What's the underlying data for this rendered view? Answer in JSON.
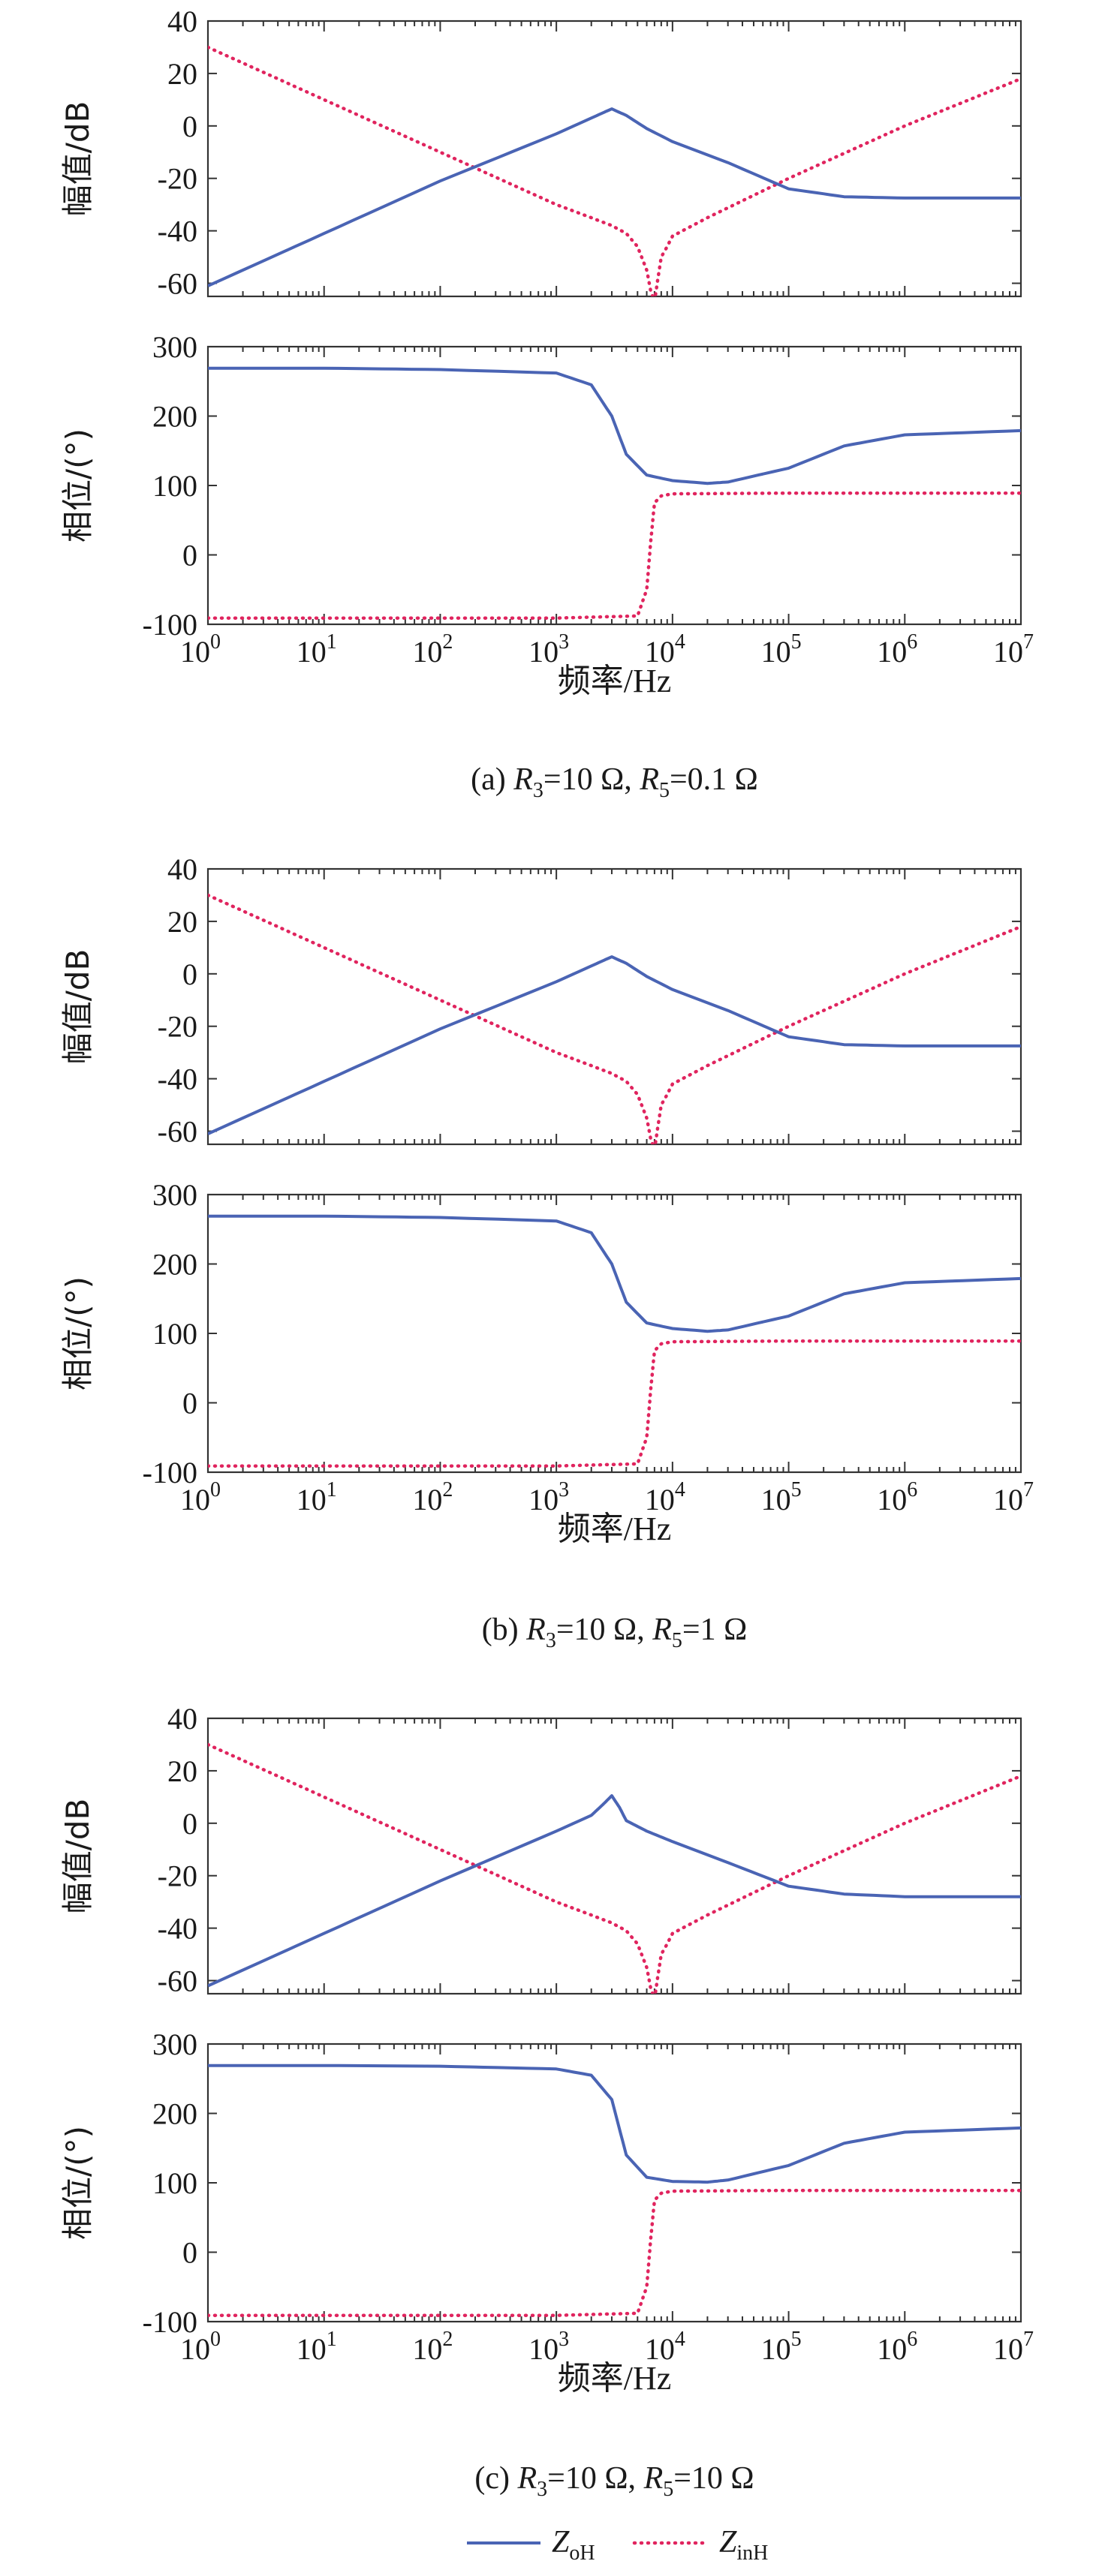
{
  "legend": [
    {
      "name": "Z",
      "sub": "oH",
      "color": "#4a64b4",
      "style": "solid"
    },
    {
      "name": "Z",
      "sub": "inH",
      "color": "#e0245e",
      "style": "dotted"
    }
  ],
  "x_axis": {
    "label": "频率/Hz",
    "scale": "log",
    "range": [
      1,
      10000000
    ],
    "tick_exponents": [
      0,
      1,
      2,
      3,
      4,
      5,
      6,
      7
    ]
  },
  "mag_axis": {
    "label": "幅值/dB",
    "range": [
      -65,
      40
    ],
    "ticks": [
      40,
      20,
      0,
      -20,
      -40,
      -60
    ]
  },
  "phase_axis": {
    "label": "相位/(°)",
    "range": [
      -100,
      300
    ],
    "ticks": [
      300,
      200,
      100,
      0,
      -100
    ]
  },
  "chart_data": [
    {
      "type": "line",
      "caption": {
        "prefix": "(a) ",
        "r3": "R",
        "r3sub": "3",
        "r3val": "=10 Ω, ",
        "r5": "R",
        "r5sub": "5",
        "r5val": "=0.1 Ω"
      },
      "magnitude": {
        "ZoH": {
          "x": [
            1,
            10,
            100,
            1000,
            2000,
            3000,
            4000,
            6000,
            10000,
            30000,
            100000,
            300000,
            1000000,
            10000000
          ],
          "y": [
            -61,
            -41,
            -21,
            -3,
            3,
            6.5,
            4,
            -1,
            -6,
            -14,
            -24,
            -27,
            -27.5,
            -27.5
          ]
        },
        "ZinH": {
          "x": [
            1,
            10,
            100,
            1000,
            2000,
            3000,
            4000,
            5000,
            6000,
            6500,
            7000,
            7500,
            8000,
            9000,
            10000,
            20000,
            100000,
            1000000,
            10000000
          ],
          "y": [
            30,
            10,
            -10,
            -30,
            -35,
            -38,
            -41,
            -46,
            -55,
            -63,
            -67,
            -58,
            -50,
            -46,
            -42,
            -35,
            -20,
            0,
            18
          ]
        }
      },
      "phase": {
        "ZoH": {
          "x": [
            1,
            10,
            100,
            1000,
            2000,
            3000,
            4000,
            6000,
            10000,
            20000,
            30000,
            100000,
            300000,
            1000000,
            10000000
          ],
          "y": [
            269,
            269,
            267,
            262,
            245,
            200,
            145,
            115,
            107,
            103,
            105,
            125,
            157,
            173,
            179
          ]
        },
        "ZinH": {
          "x": [
            1,
            10,
            100,
            1000,
            5000,
            6000,
            6500,
            7000,
            8000,
            10000,
            100000,
            1000000,
            10000000
          ],
          "y": [
            -91,
            -91,
            -91,
            -91,
            -88,
            -50,
            20,
            75,
            85,
            88,
            89,
            89,
            89
          ]
        }
      }
    },
    {
      "type": "line",
      "caption": {
        "prefix": "(b) ",
        "r3": "R",
        "r3sub": "3",
        "r3val": "=10 Ω, ",
        "r5": "R",
        "r5sub": "5",
        "r5val": "=1 Ω"
      },
      "magnitude": {
        "ZoH": {
          "x": [
            1,
            10,
            100,
            1000,
            2000,
            3000,
            4000,
            6000,
            10000,
            30000,
            100000,
            300000,
            1000000,
            10000000
          ],
          "y": [
            -61,
            -41,
            -21,
            -3,
            3,
            6.5,
            4,
            -1,
            -6,
            -14,
            -24,
            -27,
            -27.5,
            -27.5
          ]
        },
        "ZinH": {
          "x": [
            1,
            10,
            100,
            1000,
            2000,
            3000,
            4000,
            5000,
            6000,
            6500,
            7000,
            7500,
            8000,
            9000,
            10000,
            20000,
            100000,
            1000000,
            10000000
          ],
          "y": [
            30,
            10,
            -10,
            -30,
            -35,
            -38,
            -41,
            -46,
            -55,
            -63,
            -67,
            -58,
            -50,
            -46,
            -42,
            -35,
            -20,
            0,
            18
          ]
        }
      },
      "phase": {
        "ZoH": {
          "x": [
            1,
            10,
            100,
            1000,
            2000,
            3000,
            4000,
            6000,
            10000,
            20000,
            30000,
            100000,
            300000,
            1000000,
            10000000
          ],
          "y": [
            269,
            269,
            267,
            262,
            245,
            200,
            145,
            115,
            107,
            103,
            105,
            125,
            157,
            173,
            179
          ]
        },
        "ZinH": {
          "x": [
            1,
            10,
            100,
            1000,
            5000,
            6000,
            6500,
            7000,
            8000,
            10000,
            100000,
            1000000,
            10000000
          ],
          "y": [
            -91,
            -91,
            -91,
            -91,
            -88,
            -50,
            20,
            75,
            85,
            88,
            89,
            89,
            89
          ]
        }
      }
    },
    {
      "type": "line",
      "caption": {
        "prefix": "(c) ",
        "r3": "R",
        "r3sub": "3",
        "r3val": "=10 Ω, ",
        "r5": "R",
        "r5sub": "5",
        "r5val": "=10 Ω"
      },
      "magnitude": {
        "ZoH": {
          "x": [
            1,
            10,
            100,
            1000,
            2000,
            2500,
            3000,
            3500,
            4000,
            6000,
            10000,
            30000,
            100000,
            300000,
            1000000,
            10000000
          ],
          "y": [
            -62,
            -42,
            -22,
            -3,
            3,
            7,
            10.5,
            6,
            1,
            -3,
            -7,
            -15,
            -24,
            -27,
            -28,
            -28
          ]
        },
        "ZinH": {
          "x": [
            1,
            10,
            100,
            1000,
            2000,
            3000,
            4000,
            5000,
            6000,
            6500,
            7000,
            7500,
            8000,
            9000,
            10000,
            20000,
            100000,
            1000000,
            10000000
          ],
          "y": [
            30,
            10,
            -10,
            -30,
            -35,
            -38,
            -41,
            -46,
            -55,
            -63,
            -67,
            -58,
            -50,
            -46,
            -42,
            -35,
            -20,
            0,
            18
          ]
        }
      },
      "phase": {
        "ZoH": {
          "x": [
            1,
            10,
            100,
            1000,
            2000,
            3000,
            4000,
            6000,
            10000,
            20000,
            30000,
            100000,
            300000,
            1000000,
            10000000
          ],
          "y": [
            269,
            269,
            268,
            264,
            255,
            220,
            140,
            108,
            102,
            101,
            104,
            125,
            157,
            173,
            179
          ]
        },
        "ZinH": {
          "x": [
            1,
            10,
            100,
            1000,
            5000,
            6000,
            6500,
            7000,
            8000,
            10000,
            100000,
            1000000,
            10000000
          ],
          "y": [
            -91,
            -91,
            -91,
            -91,
            -88,
            -50,
            20,
            75,
            85,
            88,
            89,
            89,
            89
          ]
        }
      }
    }
  ]
}
